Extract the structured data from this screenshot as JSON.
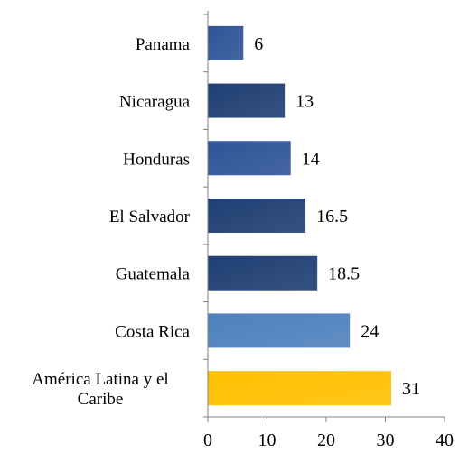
{
  "chart_data": {
    "type": "bar",
    "orientation": "horizontal",
    "categories": [
      "Panama",
      "Nicaragua",
      "Honduras",
      "El Salvador",
      "Guatemala",
      "Costa Rica",
      "América Latina y el Caribe"
    ],
    "category_lines": [
      [
        "Panama"
      ],
      [
        "Nicaragua"
      ],
      [
        "Honduras"
      ],
      [
        "El Salvador"
      ],
      [
        "Guatemala"
      ],
      [
        "Costa Rica"
      ],
      [
        "América Latina y el",
        "Caribe"
      ]
    ],
    "values": [
      6,
      13,
      14,
      16.5,
      18.5,
      24,
      31
    ],
    "value_labels": [
      "6",
      "13",
      "14",
      "16.5",
      "18.5",
      "24",
      "31"
    ],
    "bar_colors": [
      "#2F5597",
      "#1F3F73",
      "#2F5597",
      "#1F3F73",
      "#1F3F73",
      "#4F81BD",
      "#FFC000"
    ],
    "xlim": [
      0,
      40
    ],
    "xticks": [
      0,
      10,
      20,
      30,
      40
    ],
    "xtick_labels": [
      "0",
      "10",
      "20",
      "30",
      "40"
    ],
    "title": "",
    "xlabel": "",
    "ylabel": "",
    "grid": false,
    "legend": "none"
  }
}
